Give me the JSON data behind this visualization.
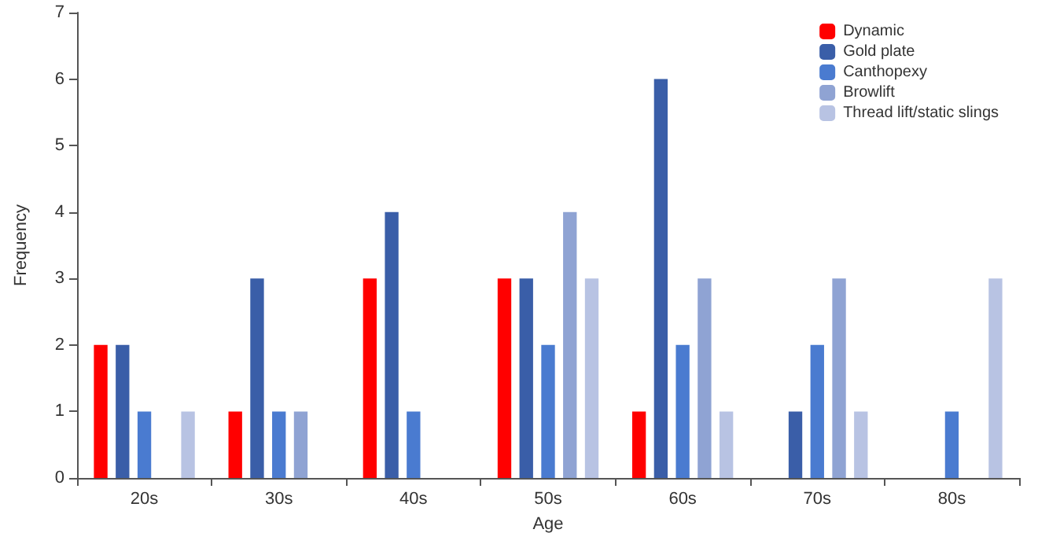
{
  "chart_data": {
    "type": "bar",
    "xlabel": "Age",
    "ylabel": "Frequency",
    "categories": [
      "20s",
      "30s",
      "40s",
      "50s",
      "60s",
      "70s",
      "80s"
    ],
    "series": [
      {
        "name": "Dynamic",
        "color": "#ff0000",
        "values": [
          2,
          1,
          3,
          3,
          1,
          0,
          0
        ]
      },
      {
        "name": "Gold plate",
        "color": "#3a5ea8",
        "values": [
          2,
          3,
          4,
          3,
          6,
          1,
          0
        ]
      },
      {
        "name": "Canthopexy",
        "color": "#4a7bd0",
        "values": [
          1,
          1,
          1,
          2,
          2,
          2,
          1
        ]
      },
      {
        "name": "Browlift",
        "color": "#8fa3d3",
        "values": [
          0,
          1,
          0,
          4,
          3,
          3,
          0
        ]
      },
      {
        "name": "Thread lift/static slings",
        "color": "#b8c3e3",
        "values": [
          1,
          0,
          0,
          3,
          1,
          1,
          3
        ]
      }
    ],
    "ylim": [
      0,
      7
    ],
    "yticks": [
      0,
      1,
      2,
      3,
      4,
      5,
      6,
      7
    ],
    "grid": false,
    "legend": "top right"
  }
}
